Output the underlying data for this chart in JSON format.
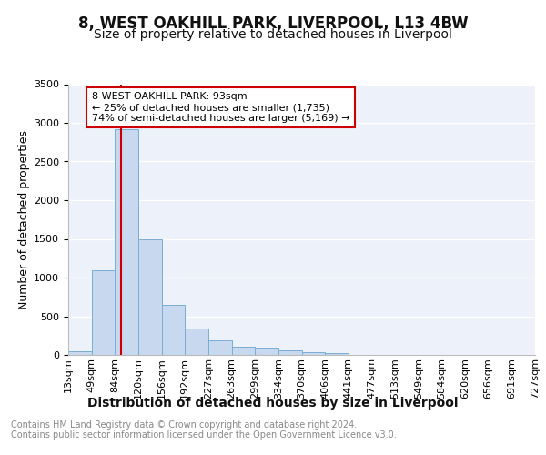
{
  "title": "8, WEST OAKHILL PARK, LIVERPOOL, L13 4BW",
  "subtitle": "Size of property relative to detached houses in Liverpool",
  "xlabel": "Distribution of detached houses by size in Liverpool",
  "ylabel": "Number of detached properties",
  "bar_values": [
    50,
    1100,
    2920,
    1500,
    650,
    340,
    190,
    105,
    90,
    55,
    35,
    25,
    0,
    0,
    0,
    0,
    0,
    0,
    0,
    0
  ],
  "categories": [
    "13sqm",
    "49sqm",
    "84sqm",
    "120sqm",
    "156sqm",
    "192sqm",
    "227sqm",
    "263sqm",
    "299sqm",
    "334sqm",
    "370sqm",
    "406sqm",
    "441sqm",
    "477sqm",
    "513sqm",
    "549sqm",
    "584sqm",
    "620sqm",
    "656sqm",
    "691sqm",
    "727sqm"
  ],
  "bar_color": "#c8d8ee",
  "bar_edge_color": "#7aaed6",
  "vline_color": "#cc0000",
  "vline_x_idx": 2,
  "ylim": [
    0,
    3500
  ],
  "yticks": [
    0,
    500,
    1000,
    1500,
    2000,
    2500,
    3000,
    3500
  ],
  "annotation_text": "8 WEST OAKHILL PARK: 93sqm\n← 25% of detached houses are smaller (1,735)\n74% of semi-detached houses are larger (5,169) →",
  "annotation_box_color": "#ffffff",
  "annotation_box_edge": "#cc0000",
  "footer_text": "Contains HM Land Registry data © Crown copyright and database right 2024.\nContains public sector information licensed under the Open Government Licence v3.0.",
  "background_color": "#edf2fa",
  "grid_color": "#ffffff",
  "title_fontsize": 12,
  "subtitle_fontsize": 10,
  "ylabel_fontsize": 9,
  "xlabel_fontsize": 10,
  "tick_fontsize": 8,
  "annot_fontsize": 8,
  "footer_fontsize": 7
}
